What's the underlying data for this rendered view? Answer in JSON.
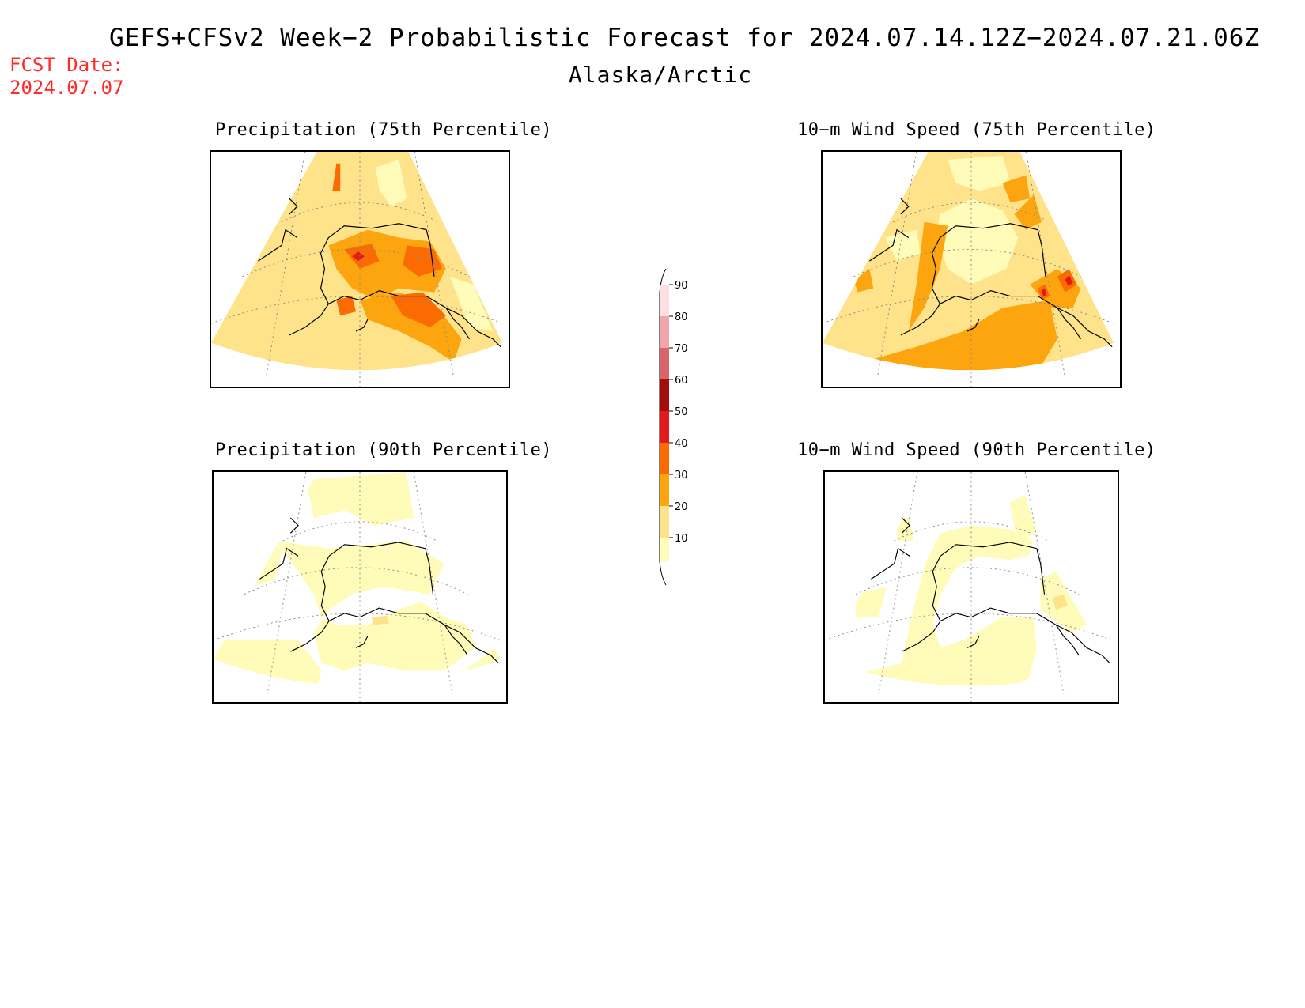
{
  "header": {
    "title": "GEFS+CFSv2 Week−2 Probabilistic Forecast for 2024.07.14.12Z−2024.07.21.06Z",
    "region": "Alaska/Arctic",
    "fcst_label": "FCST Date:",
    "fcst_date": "2024.07.07"
  },
  "panels": [
    {
      "id": "precip75",
      "title": "Precipitation (75th Percentile)"
    },
    {
      "id": "wind75",
      "title": "10−m Wind Speed (75th Percentile)"
    },
    {
      "id": "precip90",
      "title": "Precipitation (90th Percentile)"
    },
    {
      "id": "wind90",
      "title": "10−m Wind Speed (90th Percentile)"
    }
  ],
  "colorbar": {
    "levels": [
      "10",
      "20",
      "30",
      "40",
      "50",
      "60",
      "70",
      "80",
      "90"
    ],
    "colors": {
      "c10": "#fffbb8",
      "c20": "#fee38a",
      "c30": "#fda50f",
      "c40": "#fc6a02",
      "c50": "#e31a1c",
      "c60": "#a50d0d",
      "c70": "#d9646a",
      "c80": "#f2a5aa",
      "c90": "#fde0e3"
    }
  }
}
